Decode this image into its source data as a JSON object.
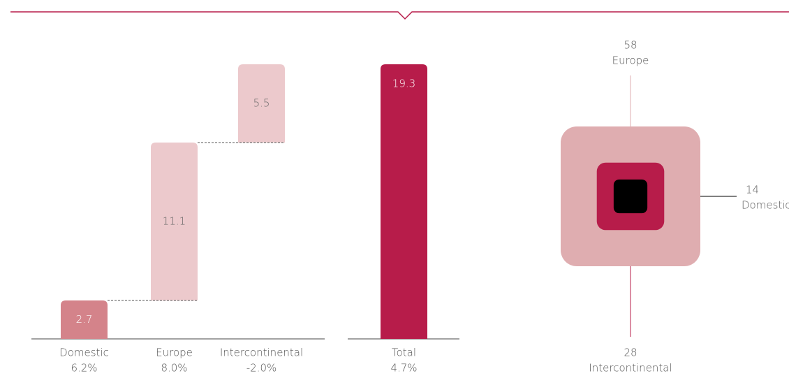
{
  "chart_data": [
    {
      "type": "waterfall",
      "categories": [
        "Domestic",
        "Europe",
        "Intercontinental",
        "Total"
      ],
      "subtitles": [
        "6.2%",
        "8.0%",
        "-2.0%",
        "4.7%"
      ],
      "values": [
        2.7,
        11.1,
        5.5,
        19.3
      ],
      "colors": [
        "#d4838a",
        "#ecc9cc",
        "#ecc9cc",
        "#b71c4a"
      ],
      "label_colors": [
        "#ffffff",
        "#666666",
        "#666666",
        "#ffffff"
      ]
    },
    {
      "type": "nested-squares",
      "categories": [
        "Europe",
        "Intercontinental",
        "Domestic"
      ],
      "values": [
        58,
        28,
        14
      ],
      "colors": [
        "#dfadb0",
        "#b71c4a",
        "#000000"
      ]
    }
  ]
}
